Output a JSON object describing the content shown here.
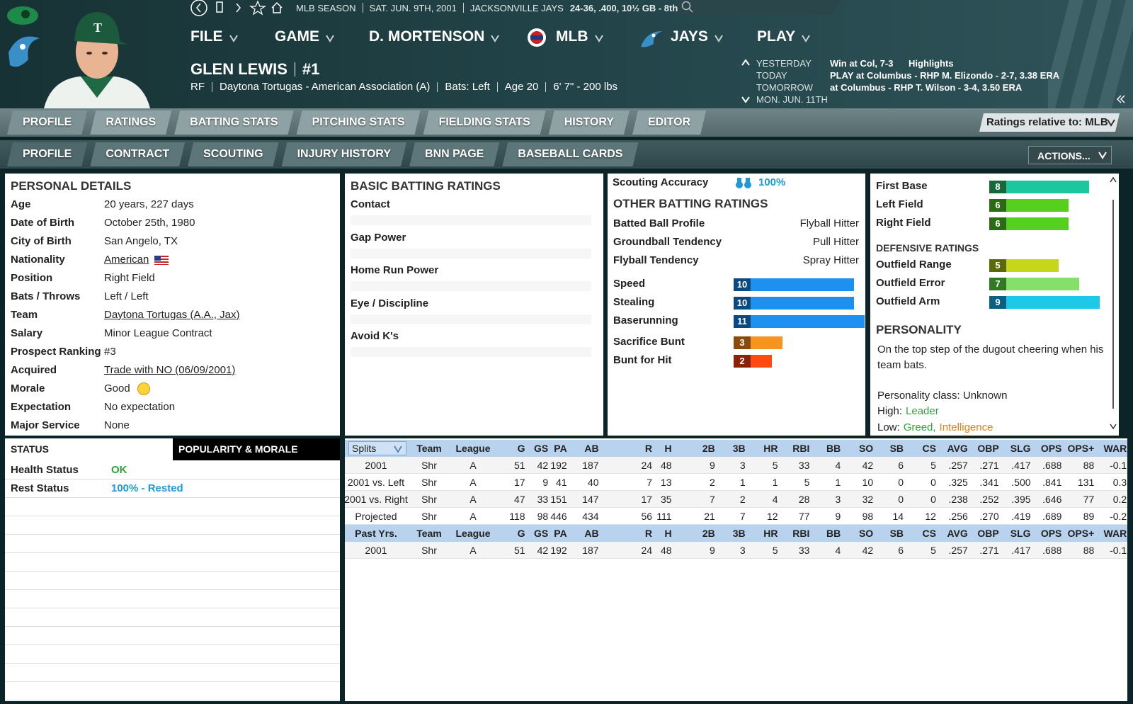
{
  "header": {
    "season": "MLB SEASON",
    "date": "SAT. JUN. 9TH, 2001",
    "team": "JACKSONVILLE JAYS",
    "record": "24-36, .400, 10½ GB - 8th"
  },
  "menu": [
    "FILE",
    "GAME",
    "D. MORTENSON",
    "MLB",
    "JAYS",
    "PLAY"
  ],
  "player": {
    "name": "GLEN LEWIS",
    "number": "#1",
    "info": [
      "RF",
      "Daytona Tortugas - American Association (A)",
      "Bats: Left",
      "Age 20",
      "6' 7\" - 200 lbs"
    ]
  },
  "schedule": [
    {
      "day": "YESTERDAY",
      "text": "Win at Col, 7-3",
      "link": "Highlights"
    },
    {
      "day": "TODAY",
      "text": "PLAY at Columbus - RHP M. Elizondo - 2-7, 3.38 ERA"
    },
    {
      "day": "TOMORROW",
      "text": "at Columbus - RHP T. Wilson - 3-4, 3.50 ERA"
    },
    {
      "day": "MON. JUN. 11TH"
    }
  ],
  "tabs": {
    "primary": [
      "PROFILE",
      "RATINGS",
      "BATTING STATS",
      "PITCHING STATS",
      "FIELDING STATS",
      "HISTORY",
      "EDITOR"
    ],
    "secondary": [
      "PROFILE",
      "CONTRACT",
      "SCOUTING",
      "INJURY HISTORY",
      "BNN PAGE",
      "BASEBALL CARDS"
    ],
    "relative": "Ratings relative to: MLB",
    "actions": "ACTIONS..."
  },
  "personal": {
    "title": "PERSONAL DETAILS",
    "rows": [
      {
        "label": "Age",
        "value": "20 years, 227 days"
      },
      {
        "label": "Date of Birth",
        "value": "October 25th, 1980"
      },
      {
        "label": "City of Birth",
        "value": "San Angelo, TX"
      },
      {
        "label": "Nationality",
        "value": "American",
        "link": true
      },
      {
        "label": "Position",
        "value": "Right Field"
      },
      {
        "label": "Bats / Throws",
        "value": "Left / Left"
      },
      {
        "label": "Team",
        "value": "Daytona Tortugas (A.A., Jax)",
        "link": true
      },
      {
        "label": "Salary",
        "value": "Minor League Contract"
      },
      {
        "label": "Prospect Ranking",
        "value": "#3"
      },
      {
        "label": "Acquired",
        "value": "Trade with NO (06/09/2001)",
        "link": true
      },
      {
        "label": "Morale",
        "value": "Good"
      },
      {
        "label": "Expectation",
        "value": "No expectation"
      },
      {
        "label": "Major Service",
        "value": "None"
      }
    ]
  },
  "basic_batting": {
    "title": "BASIC BATTING RATINGS",
    "items": [
      "Contact",
      "Gap Power",
      "Home Run Power",
      "Eye / Discipline",
      "Avoid K's"
    ]
  },
  "scouting": {
    "label": "Scouting Accuracy",
    "value": "100%"
  },
  "other_batting": {
    "title": "OTHER BATTING RATINGS",
    "profile": [
      {
        "label": "Batted Ball Profile",
        "value": "Flyball Hitter"
      },
      {
        "label": "Groundball Tendency",
        "value": "Pull Hitter"
      },
      {
        "label": "Flyball Tendency",
        "value": "Spray Hitter"
      }
    ],
    "ratings": [
      {
        "name": "Speed",
        "value": 10,
        "color": "#1e90f0",
        "box": "#0b4a80"
      },
      {
        "name": "Stealing",
        "value": 10,
        "color": "#1e90f0",
        "box": "#0b4a80"
      },
      {
        "name": "Baserunning",
        "value": 11,
        "color": "#1e90f0",
        "box": "#0b4a80"
      },
      {
        "name": "Sacrifice Bunt",
        "value": 3,
        "color": "#f7941d",
        "box": "#8a4a0a"
      },
      {
        "name": "Bunt for Hit",
        "value": 2,
        "color": "#ff4a10",
        "box": "#8a2208"
      }
    ]
  },
  "fielding": {
    "positions": [
      {
        "name": "First Base",
        "value": 8,
        "color": "#1cc7a0",
        "box": "#166a3a"
      },
      {
        "name": "Left Field",
        "value": 6,
        "color": "#55d01e",
        "box": "#2c6a14"
      },
      {
        "name": "Right Field",
        "value": 6,
        "color": "#55d01e",
        "box": "#2c6a14"
      }
    ],
    "defensive_title": "DEFENSIVE RATINGS",
    "defensive": [
      {
        "name": "Outfield Range",
        "value": 5,
        "color": "#c6d618",
        "box": "#5a6a0a"
      },
      {
        "name": "Outfield Error",
        "value": 7,
        "color": "#84e06a",
        "box": "#2f7a22"
      },
      {
        "name": "Outfield Arm",
        "value": 9,
        "color": "#1ec8e6",
        "box": "#0a6080"
      }
    ]
  },
  "personality": {
    "title": "PERSONALITY",
    "description": "On the top step of the dugout cheering when his team bats.",
    "class": "Personality class: Unknown",
    "high_label": "High:",
    "high": [
      "Leader"
    ],
    "low_label": "Low:",
    "low": [
      "Greed,",
      "Intelligence"
    ]
  },
  "status": {
    "tabs": [
      "STATUS",
      "POPULARITY & MORALE"
    ],
    "rows": [
      {
        "label": "Health Status",
        "value": "OK",
        "color": "#2aa838"
      },
      {
        "label": "Rest Status",
        "value": "100% - Rested",
        "color": "#1e9ad6"
      }
    ]
  },
  "stats": {
    "columns": [
      "Splits",
      "Team",
      "League",
      "G",
      "GS",
      "PA",
      "AB",
      "R",
      "H",
      "2B",
      "3B",
      "HR",
      "RBI",
      "BB",
      "SO",
      "SB",
      "CS",
      "AVG",
      "OBP",
      "SLG",
      "OPS",
      "OPS+",
      "WAR"
    ],
    "rows": [
      [
        "2001",
        "Shr",
        "A",
        51,
        42,
        192,
        187,
        24,
        48,
        9,
        3,
        5,
        33,
        4,
        42,
        6,
        5,
        ".257",
        ".271",
        ".417",
        ".688",
        88,
        -0.1
      ],
      [
        "2001 vs. Left",
        "Shr",
        "A",
        17,
        9,
        41,
        40,
        7,
        13,
        2,
        1,
        1,
        5,
        1,
        10,
        0,
        0,
        ".325",
        ".341",
        ".500",
        ".841",
        131,
        0.3
      ],
      [
        "2001 vs. Right",
        "Shr",
        "A",
        47,
        33,
        151,
        147,
        17,
        35,
        7,
        2,
        4,
        28,
        3,
        32,
        0,
        0,
        ".238",
        ".252",
        ".395",
        ".646",
        77,
        0.2
      ],
      [
        "Projected",
        "Shr",
        "A",
        118,
        98,
        446,
        434,
        56,
        111,
        21,
        7,
        12,
        77,
        9,
        98,
        14,
        12,
        ".256",
        ".270",
        ".419",
        ".689",
        89,
        -0.2
      ]
    ],
    "past_columns": [
      "Past Yrs.",
      "Team",
      "League",
      "G",
      "GS",
      "PA",
      "AB",
      "R",
      "H",
      "2B",
      "3B",
      "HR",
      "RBI",
      "BB",
      "SO",
      "SB",
      "CS",
      "AVG",
      "OBP",
      "SLG",
      "OPS",
      "OPS+",
      "WAR"
    ],
    "past_rows": [
      [
        "2001",
        "Shr",
        "A",
        51,
        42,
        192,
        187,
        24,
        48,
        9,
        3,
        5,
        33,
        4,
        42,
        6,
        5,
        ".257",
        ".271",
        ".417",
        ".688",
        88,
        -0.1
      ]
    ]
  }
}
